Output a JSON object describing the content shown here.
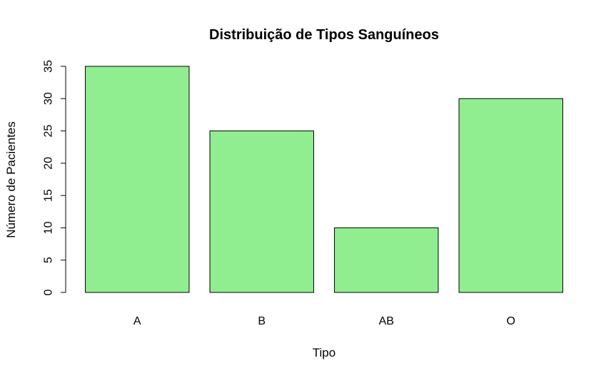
{
  "chart_data": {
    "type": "bar",
    "title": "Distribuição de Tipos Sanguíneos",
    "xlabel": "Tipo",
    "ylabel": "Número de Pacientes",
    "categories": [
      "A",
      "B",
      "AB",
      "O"
    ],
    "values": [
      35,
      25,
      10,
      30
    ],
    "ylim": [
      0,
      35
    ],
    "yticks": [
      0,
      5,
      10,
      15,
      20,
      25,
      30,
      35
    ],
    "grid": false,
    "legend": "none",
    "bar_color": "#90EE90",
    "bar_border_color": "#000000"
  }
}
